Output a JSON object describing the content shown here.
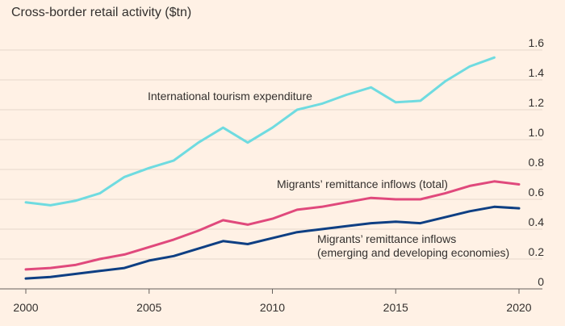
{
  "chart_data": {
    "type": "line",
    "title": "Cross-border retail activity ($tn)",
    "xlabel": "",
    "ylabel": "",
    "xlim": [
      2000,
      2020
    ],
    "ylim": [
      0,
      1.6
    ],
    "x_ticks": [
      "2000",
      "2005",
      "2010",
      "2015",
      "2020"
    ],
    "y_ticks": [
      "0",
      "0.2",
      "0.4",
      "0.6",
      "0.8",
      "1.0",
      "1.2",
      "1.4",
      "1.6"
    ],
    "grid": "horizontal",
    "x": [
      2000,
      2001,
      2002,
      2003,
      2004,
      2005,
      2006,
      2007,
      2008,
      2009,
      2010,
      2011,
      2012,
      2013,
      2014,
      2015,
      2016,
      2017,
      2018,
      2019,
      2020
    ],
    "series": [
      {
        "name": "International tourism expenditure",
        "color": "#6fdbe0",
        "values": [
          0.58,
          0.56,
          0.59,
          0.64,
          0.75,
          0.81,
          0.86,
          0.98,
          1.08,
          0.98,
          1.08,
          1.2,
          1.24,
          1.3,
          1.35,
          1.25,
          1.26,
          1.39,
          1.49,
          1.55,
          null
        ]
      },
      {
        "name": "Migrants' remittance inflows (total)",
        "color": "#e0497c",
        "values": [
          0.13,
          0.14,
          0.16,
          0.2,
          0.23,
          0.28,
          0.33,
          0.39,
          0.46,
          0.43,
          0.47,
          0.53,
          0.55,
          0.58,
          0.61,
          0.6,
          0.6,
          0.64,
          0.69,
          0.72,
          0.7
        ]
      },
      {
        "name": "Migrants' remittance inflows (emerging and developing economies)",
        "color": "#0e3f83",
        "values": [
          0.07,
          0.08,
          0.1,
          0.12,
          0.14,
          0.19,
          0.22,
          0.27,
          0.32,
          0.3,
          0.34,
          0.38,
          0.4,
          0.42,
          0.44,
          0.45,
          0.44,
          0.48,
          0.52,
          0.55,
          0.54
        ]
      }
    ],
    "annotations": [
      {
        "line1": "International tourism expenditure",
        "line2": ""
      },
      {
        "line1": "Migrants’ remittance inflows (total)",
        "line2": ""
      },
      {
        "line1": "Migrants’ remittance inflows",
        "line2": "(emerging and developing economies)"
      }
    ]
  }
}
